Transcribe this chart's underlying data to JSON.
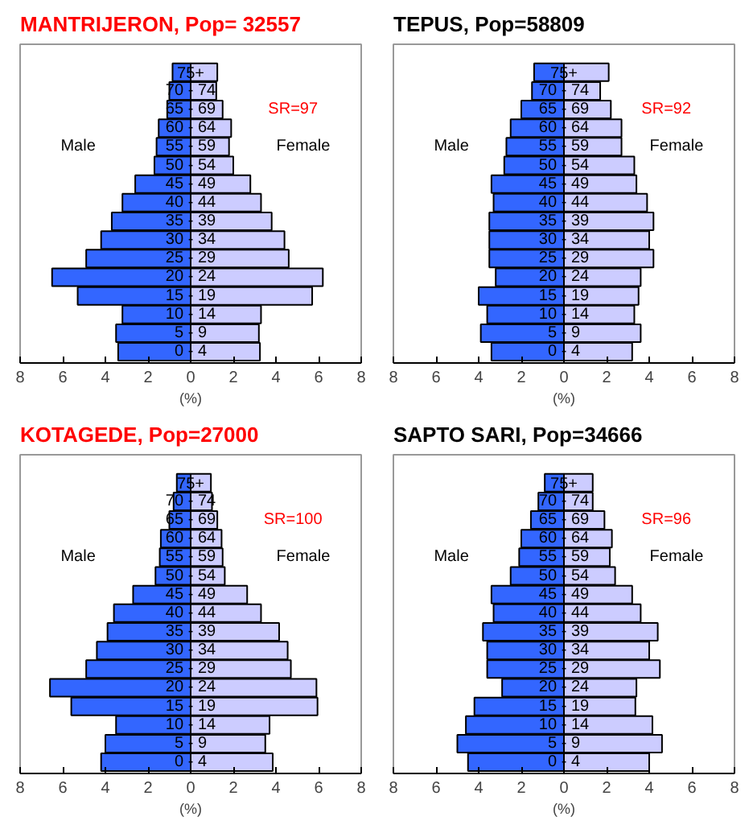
{
  "chart_data": [
    {
      "type": "bar",
      "title": "MANTRIJERON,  Pop= 32557",
      "orientation": "horizontal",
      "stacked": true,
      "xlabel": "(%)",
      "xlim": [
        -8,
        8
      ],
      "xticks": [
        {
          "value": -8,
          "label": "8"
        },
        {
          "value": -6,
          "label": "6"
        },
        {
          "value": -4,
          "label": "4"
        },
        {
          "value": -2,
          "label": "2"
        },
        0,
        2,
        4,
        6,
        8
      ],
      "categories": [
        "75+",
        "70 - 74",
        "65 - 69",
        "60 - 64",
        "55 - 59",
        "50 - 54",
        "45 - 49",
        "40 - 44",
        "35 - 39",
        "30 - 34",
        "25 - 29",
        "20 - 24",
        "15 - 19",
        "10 - 14",
        "5 - 9",
        "0 - 4"
      ],
      "series": [
        {
          "name": "Male",
          "color": "#3366ff",
          "values": [
            -0.85,
            -1.0,
            -1.1,
            -1.5,
            -1.6,
            -1.7,
            -2.6,
            -3.2,
            -3.7,
            -4.2,
            -4.9,
            -6.5,
            -5.3,
            -3.2,
            -3.5,
            -3.4
          ]
        },
        {
          "name": "Female",
          "color": "#ccccff",
          "values": [
            1.25,
            1.2,
            1.5,
            1.9,
            1.8,
            2.0,
            2.8,
            3.3,
            3.8,
            4.4,
            4.6,
            6.2,
            5.7,
            3.3,
            3.2,
            3.25
          ]
        }
      ],
      "annotations": [
        "SR=97"
      ],
      "legend": false,
      "grid": false
    },
    {
      "type": "bar",
      "title": "TEPUS,  Pop=58809",
      "orientation": "horizontal",
      "stacked": true,
      "xlabel": "(%)",
      "xlim": [
        -8,
        8
      ],
      "xticks": [
        {
          "value": -8,
          "label": "8"
        },
        {
          "value": -6,
          "label": "6"
        },
        {
          "value": -4,
          "label": "4"
        },
        {
          "value": -2,
          "label": "2"
        },
        0,
        2,
        4,
        6,
        8
      ],
      "categories": [
        "75+",
        "70 - 74",
        "65 - 69",
        "60 - 64",
        "55 - 59",
        "50 - 54",
        "45 - 49",
        "40 - 44",
        "35 - 39",
        "30 - 34",
        "25 - 29",
        "20 - 24",
        "15 - 19",
        "10 - 14",
        "5 - 9",
        "0 - 4"
      ],
      "series": [
        {
          "name": "Male",
          "color": "#3366ff",
          "values": [
            -1.4,
            -1.5,
            -2.0,
            -2.5,
            -2.7,
            -2.8,
            -3.4,
            -3.3,
            -3.5,
            -3.5,
            -3.5,
            -3.2,
            -4.0,
            -3.6,
            -3.9,
            -3.4
          ]
        },
        {
          "name": "Female",
          "color": "#ccccff",
          "values": [
            2.1,
            1.7,
            2.2,
            2.7,
            2.7,
            3.3,
            3.4,
            3.9,
            4.2,
            4.0,
            4.2,
            3.6,
            3.5,
            3.3,
            3.6,
            3.2
          ]
        }
      ],
      "annotations": [
        "SR=92"
      ],
      "legend": false,
      "grid": false
    },
    {
      "type": "bar",
      "title": "KOTAGEDE,  Pop=27000",
      "orientation": "horizontal",
      "stacked": true,
      "xlabel": "(%)",
      "xlim": [
        -8,
        8
      ],
      "xticks": [
        {
          "value": -8,
          "label": "8"
        },
        {
          "value": -6,
          "label": "6"
        },
        {
          "value": -4,
          "label": "4"
        },
        {
          "value": -2,
          "label": "2"
        },
        0,
        2,
        4,
        6,
        8
      ],
      "categories": [
        "75+",
        "70 - 74",
        "65 - 69",
        "60 - 64",
        "55 - 59",
        "50 - 54",
        "45 - 49",
        "40 - 44",
        "35 - 39",
        "30 - 34",
        "25 - 29",
        "20 - 24",
        "15 - 19",
        "10 - 14",
        "5 - 9",
        "0 - 4"
      ],
      "series": [
        {
          "name": "Male",
          "color": "#3366ff",
          "values": [
            -0.65,
            -0.8,
            -1.0,
            -1.4,
            -1.45,
            -1.65,
            -2.7,
            -3.6,
            -3.9,
            -4.4,
            -4.9,
            -6.6,
            -5.6,
            -3.5,
            -4.0,
            -4.2
          ]
        },
        {
          "name": "Female",
          "color": "#ccccff",
          "values": [
            0.95,
            1.0,
            1.25,
            1.45,
            1.5,
            1.6,
            2.65,
            3.3,
            4.15,
            4.55,
            4.7,
            5.9,
            5.95,
            3.7,
            3.5,
            3.85
          ]
        }
      ],
      "annotations": [
        "SR=100"
      ],
      "legend": false,
      "grid": false
    },
    {
      "type": "bar",
      "title": "SAPTO SARI,  Pop=34666",
      "orientation": "horizontal",
      "stacked": true,
      "xlabel": "(%)",
      "xlim": [
        -8,
        8
      ],
      "xticks": [
        {
          "value": -8,
          "label": "8"
        },
        {
          "value": -6,
          "label": "6"
        },
        {
          "value": -4,
          "label": "4"
        },
        {
          "value": -2,
          "label": "2"
        },
        0,
        2,
        4,
        6,
        8
      ],
      "categories": [
        "75+",
        "70 - 74",
        "65 - 69",
        "60 - 64",
        "55 - 59",
        "50 - 54",
        "45 - 49",
        "40 - 44",
        "35 - 39",
        "30 - 34",
        "25 - 29",
        "20 - 24",
        "15 - 19",
        "10 - 14",
        "5 - 9",
        "0 - 4"
      ],
      "series": [
        {
          "name": "Male",
          "color": "#3366ff",
          "values": [
            -0.9,
            -1.2,
            -1.55,
            -2.0,
            -2.1,
            -2.5,
            -3.4,
            -3.3,
            -3.8,
            -3.6,
            -3.6,
            -2.9,
            -4.2,
            -4.6,
            -5.0,
            -4.5
          ]
        },
        {
          "name": "Female",
          "color": "#ccccff",
          "values": [
            1.35,
            1.35,
            1.9,
            2.25,
            2.15,
            2.4,
            3.2,
            3.6,
            4.4,
            4.0,
            4.5,
            3.4,
            3.35,
            4.15,
            4.6,
            4.0
          ]
        }
      ],
      "annotations": [
        "SR=96"
      ],
      "legend": false,
      "grid": false
    }
  ]
}
